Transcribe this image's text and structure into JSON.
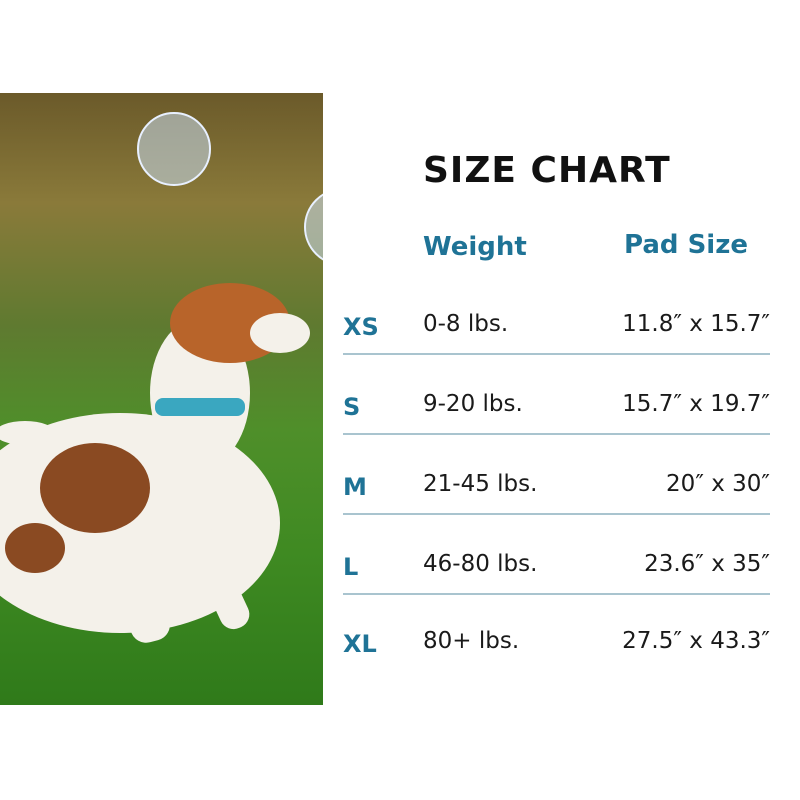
{
  "title": "SIZE CHART",
  "headers": {
    "weight": "Weight",
    "pad_size": "Pad Size"
  },
  "rows": [
    {
      "size": "XS",
      "weight": "0-8 lbs.",
      "pad": "11.8″ x 15.7″"
    },
    {
      "size": "S",
      "weight": "9-20 lbs.",
      "pad": "15.7″ x 19.7″"
    },
    {
      "size": "M",
      "weight": "21-45 lbs.",
      "pad": "20″ x 30″"
    },
    {
      "size": "L",
      "weight": "46-80 lbs.",
      "pad": "23.6″ x 35″"
    },
    {
      "size": "XL",
      "weight": "80+ lbs.",
      "pad": "27.5″ x 43.3″"
    }
  ],
  "colors": {
    "accent": "#1f7396",
    "divider": "#a9c4cf",
    "text": "#1a1a1a"
  }
}
